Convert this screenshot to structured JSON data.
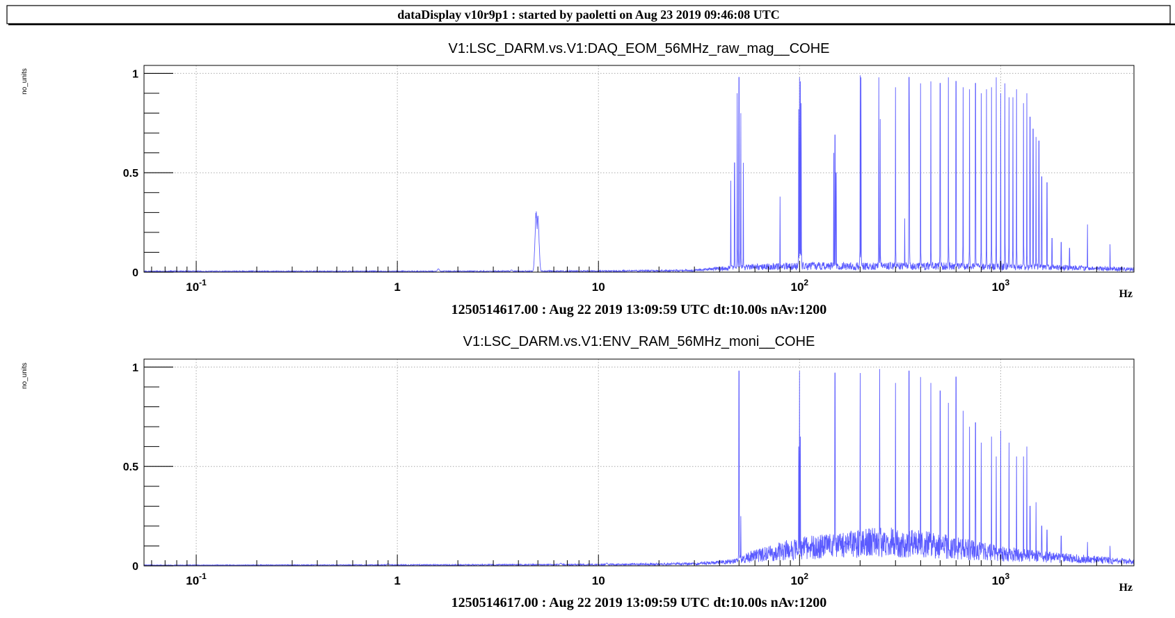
{
  "header": {
    "title": "dataDisplay v10r9p1 : started by paoletti on Aug 23 2019 09:46:08 UTC"
  },
  "colors": {
    "trace": "#5b5bff",
    "axis": "#000000",
    "grid": "#aaaaaa",
    "background": "#ffffff"
  },
  "chart_data": [
    {
      "type": "line",
      "title": "V1:LSC_DARM.vs.V1:DAQ_EOM_56MHz_raw_mag__COHE",
      "ylabel": "no_units",
      "xlabel": "Hz",
      "footer": "1250514617.00 : Aug 22 2019 13:09:59 UTC dt:10.00s nAv:1200",
      "xscale": "log",
      "xlim": [
        0.055,
        4600
      ],
      "ylim": [
        0,
        1.04
      ],
      "grid": true,
      "y_ticks": [
        {
          "value": 0,
          "label": "0"
        },
        {
          "value": 0.5,
          "label": "0.5"
        },
        {
          "value": 1,
          "label": "1"
        }
      ],
      "x_ticks": [
        {
          "value": 0.1,
          "base": "10",
          "exp": "-1"
        },
        {
          "value": 1,
          "base": "1",
          "exp": ""
        },
        {
          "value": 10,
          "base": "10",
          "exp": ""
        },
        {
          "value": 100,
          "base": "10",
          "exp": "2"
        },
        {
          "value": 1000,
          "base": "10",
          "exp": "3"
        }
      ],
      "floor": [
        [
          0.055,
          0.004
        ],
        [
          1,
          0.004
        ],
        [
          10,
          0.005
        ],
        [
          30,
          0.008
        ],
        [
          45,
          0.02
        ],
        [
          60,
          0.025
        ],
        [
          100,
          0.03
        ],
        [
          500,
          0.03
        ],
        [
          1500,
          0.025
        ],
        [
          4600,
          0.015
        ]
      ],
      "bumps": [
        [
          1.6,
          0.018
        ],
        [
          3.7,
          0.012
        ],
        [
          4.9,
          0.32
        ],
        [
          5.0,
          0.3
        ]
      ],
      "peaks": [
        [
          45.5,
          0.46
        ],
        [
          47.5,
          0.55
        ],
        [
          49,
          0.9
        ],
        [
          50,
          0.98
        ],
        [
          51,
          0.8
        ],
        [
          52.5,
          0.55
        ],
        [
          80,
          0.38
        ],
        [
          99,
          0.82
        ],
        [
          100,
          0.98
        ],
        [
          101,
          0.96
        ],
        [
          102,
          0.85
        ],
        [
          148,
          0.6
        ],
        [
          150,
          0.69
        ],
        [
          152,
          0.5
        ],
        [
          200,
          0.99
        ],
        [
          202,
          0.98
        ],
        [
          248,
          0.98
        ],
        [
          252,
          0.77
        ],
        [
          300,
          0.93
        ],
        [
          333,
          0.27
        ],
        [
          350,
          0.98
        ],
        [
          352,
          0.7
        ],
        [
          400,
          0.95
        ],
        [
          450,
          0.96
        ],
        [
          500,
          0.95
        ],
        [
          550,
          0.98
        ],
        [
          600,
          0.96
        ],
        [
          650,
          0.93
        ],
        [
          700,
          0.92
        ],
        [
          750,
          0.95
        ],
        [
          800,
          0.9
        ],
        [
          850,
          0.92
        ],
        [
          900,
          0.93
        ],
        [
          950,
          0.98
        ],
        [
          1000,
          0.9
        ],
        [
          1050,
          0.95
        ],
        [
          1100,
          0.88
        ],
        [
          1150,
          0.88
        ],
        [
          1200,
          0.92
        ],
        [
          1300,
          0.85
        ],
        [
          1350,
          0.9
        ],
        [
          1400,
          0.78
        ],
        [
          1450,
          0.72
        ],
        [
          1500,
          0.68
        ],
        [
          1550,
          0.66
        ],
        [
          1600,
          0.48
        ],
        [
          1700,
          0.45
        ],
        [
          1800,
          0.17
        ],
        [
          2000,
          0.15
        ],
        [
          2200,
          0.12
        ],
        [
          2700,
          0.24
        ],
        [
          3500,
          0.14
        ]
      ],
      "series_name": ""
    },
    {
      "type": "line",
      "title": "V1:LSC_DARM.vs.V1:ENV_RAM_56MHz_moni__COHE",
      "ylabel": "no_units",
      "xlabel": "Hz",
      "footer": "1250514617.00 : Aug 22 2019 13:09:59 UTC dt:10.00s nAv:1200",
      "xscale": "log",
      "xlim": [
        0.055,
        4600
      ],
      "ylim": [
        0,
        1.04
      ],
      "grid": true,
      "y_ticks": [
        {
          "value": 0,
          "label": "0"
        },
        {
          "value": 0.5,
          "label": "0.5"
        },
        {
          "value": 1,
          "label": "1"
        }
      ],
      "x_ticks": [
        {
          "value": 0.1,
          "base": "10",
          "exp": "-1"
        },
        {
          "value": 1,
          "base": "1",
          "exp": ""
        },
        {
          "value": 10,
          "base": "10",
          "exp": ""
        },
        {
          "value": 100,
          "base": "10",
          "exp": "2"
        },
        {
          "value": 1000,
          "base": "10",
          "exp": "3"
        }
      ],
      "floor": [
        [
          0.055,
          0.003
        ],
        [
          1,
          0.004
        ],
        [
          10,
          0.006
        ],
        [
          30,
          0.01
        ],
        [
          45,
          0.02
        ],
        [
          60,
          0.05
        ],
        [
          100,
          0.09
        ],
        [
          150,
          0.1
        ],
        [
          250,
          0.12
        ],
        [
          400,
          0.11
        ],
        [
          600,
          0.09
        ],
        [
          1000,
          0.06
        ],
        [
          2000,
          0.04
        ],
        [
          4600,
          0.02
        ]
      ],
      "bumps": [
        [
          0.9,
          0.012
        ],
        [
          6.5,
          0.015
        ],
        [
          11,
          0.015
        ]
      ],
      "peaks": [
        [
          50,
          0.98
        ],
        [
          51,
          0.25
        ],
        [
          99,
          0.6
        ],
        [
          100,
          0.98
        ],
        [
          101,
          0.65
        ],
        [
          150,
          0.97
        ],
        [
          200,
          0.97
        ],
        [
          250,
          0.99
        ],
        [
          300,
          0.92
        ],
        [
          350,
          0.98
        ],
        [
          400,
          0.95
        ],
        [
          450,
          0.92
        ],
        [
          500,
          0.88
        ],
        [
          550,
          0.82
        ],
        [
          600,
          0.95
        ],
        [
          650,
          0.78
        ],
        [
          700,
          0.7
        ],
        [
          750,
          0.72
        ],
        [
          800,
          0.62
        ],
        [
          900,
          0.65
        ],
        [
          950,
          0.55
        ],
        [
          1000,
          0.68
        ],
        [
          1100,
          0.62
        ],
        [
          1200,
          0.55
        ],
        [
          1300,
          0.55
        ],
        [
          1350,
          0.6
        ],
        [
          1400,
          0.3
        ],
        [
          1500,
          0.32
        ],
        [
          1600,
          0.2
        ],
        [
          1700,
          0.18
        ],
        [
          2000,
          0.15
        ],
        [
          2700,
          0.12
        ],
        [
          3500,
          0.1
        ]
      ],
      "series_name": ""
    }
  ]
}
